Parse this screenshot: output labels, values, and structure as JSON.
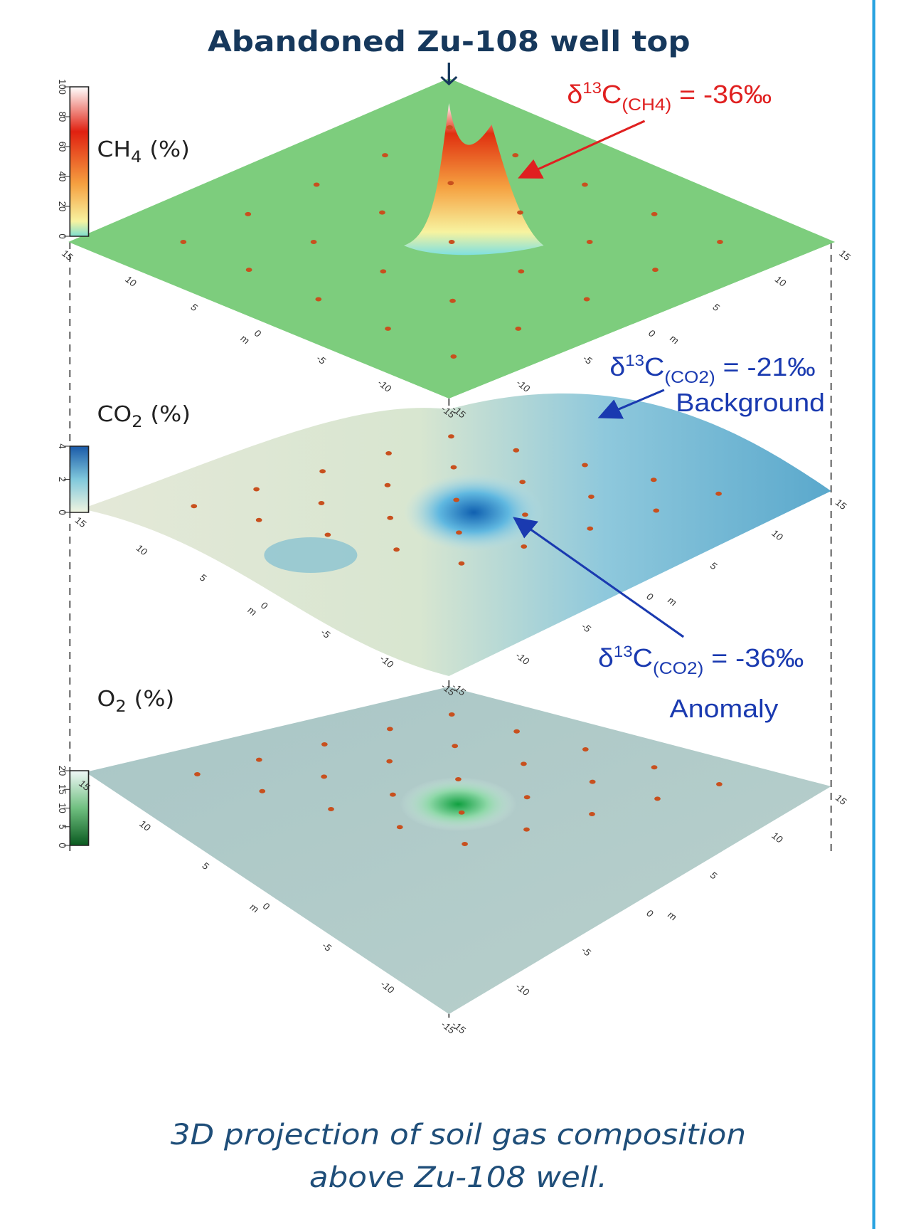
{
  "title": "Abandoned Zu-108 well top",
  "layers": [
    {
      "gas": "CH",
      "sub": "4",
      "unit": "(%)",
      "colorbar_ticks": [
        0,
        20,
        40,
        60,
        80,
        100
      ]
    },
    {
      "gas": "CO",
      "sub": "2",
      "unit": "(%)",
      "colorbar_ticks": [
        0,
        2,
        4
      ]
    },
    {
      "gas": "O",
      "sub": "2",
      "unit": "(%)",
      "colorbar_ticks": [
        0,
        5,
        10,
        15,
        20
      ]
    }
  ],
  "axis_ticks": [
    15,
    10,
    5,
    0,
    -5,
    -10,
    -15
  ],
  "axis_unit": "m",
  "annotations": [
    {
      "pre": "δ",
      "sup": "13",
      "base": "C",
      "sub": "(CH4)",
      "post": " = -36‰"
    },
    {
      "pre": "δ",
      "sup": "13",
      "base": "C",
      "sub": "(CO2)",
      "post": " = -21‰",
      "note": "Background"
    },
    {
      "pre": "δ",
      "sup": "13",
      "base": "C",
      "sub": "(CO2)",
      "post": " = -36‰",
      "note": "Anomaly"
    }
  ],
  "caption": [
    "3D projection of soil gas composition",
    "above Zu-108 well."
  ]
}
